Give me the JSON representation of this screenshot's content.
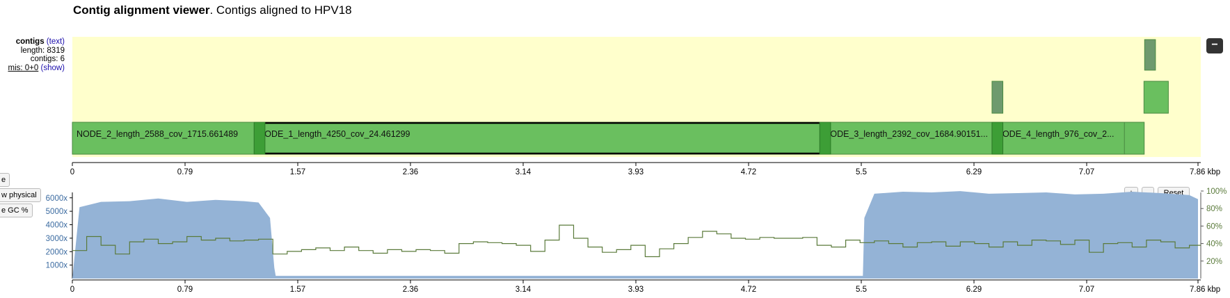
{
  "header": {
    "title_bold": "Contig alignment viewer",
    "title_rest": ". Contigs aligned to HPV18"
  },
  "info": {
    "contigs_label": "contigs",
    "text_link": "(text)",
    "length": "length: 8319",
    "contigs": "contigs: 6",
    "mis": "mis: 0+0",
    "show_link": "(show)"
  },
  "collapse_label": "−",
  "alignment": {
    "contigs": [
      {
        "name": "NODE_2_length_2588_cov_1715.661489",
        "start": 0,
        "end": 2588,
        "lane": 0,
        "color": "#6abf5f"
      },
      {
        "name": "NODE_1_length_4250_cov_24.461299",
        "start": 1340,
        "end": 5590,
        "lane": 0,
        "color": "#6abf5f",
        "selected": true
      },
      {
        "name": "NODE_3_length_2392_cov_1684.90151...",
        "start": 5510,
        "end": 7902,
        "lane": 0,
        "color": "#6abf5f"
      },
      {
        "name": "NODE_4_length_976_cov_2...",
        "start": 6780,
        "end": 7756,
        "lane": 0,
        "color": "#6abf5f"
      },
      {
        "name": "",
        "start": 6780,
        "end": 6860,
        "lane": 1,
        "color": "#6e9a6e"
      },
      {
        "name": "",
        "start": 7900,
        "end": 8080,
        "lane": 1,
        "color": "#6abf5f"
      },
      {
        "name": "",
        "start": 7905,
        "end": 7985,
        "lane": 2,
        "color": "#6e9a6e"
      }
    ],
    "overlaps": [
      {
        "start": 1340,
        "end": 1420
      },
      {
        "start": 5510,
        "end": 5590
      },
      {
        "start": 6780,
        "end": 6860
      }
    ]
  },
  "axis": {
    "ticks": [
      "0",
      "0.79",
      "1.57",
      "2.36",
      "3.14",
      "3.93",
      "4.72",
      "5.5",
      "6.29",
      "7.07",
      "7.86 kbp"
    ]
  },
  "coverage_controls": {
    "plus": "+",
    "minus": "-",
    "reset": "Reset",
    "side_buttons": [
      "e",
      "w physical",
      "e GC %"
    ]
  },
  "chart_data": {
    "type": "area",
    "title": "",
    "y_left_ticks": [
      "6000x",
      "5000x",
      "4000x",
      "3000x",
      "2000x",
      "1000x"
    ],
    "y_left_range": [
      0,
      6400
    ],
    "y_right_ticks": [
      "100%",
      "80%",
      "60%",
      "40%",
      "20%"
    ],
    "y_right_range": [
      0,
      100
    ],
    "x_range_kbp": [
      0,
      7.86
    ],
    "series": [
      {
        "kind": "coverage",
        "color": "#94b3d6",
        "x": [
          0,
          0.05,
          0.2,
          0.4,
          0.6,
          0.8,
          1.0,
          1.2,
          1.3,
          1.38,
          1.41,
          1.42,
          5.52,
          5.53,
          5.6,
          5.8,
          6.0,
          6.2,
          6.4,
          6.6,
          6.8,
          7.0,
          7.2,
          7.4,
          7.6,
          7.8,
          7.86
        ],
        "y": [
          0,
          5300,
          5700,
          5750,
          5950,
          5700,
          5850,
          5750,
          5650,
          4500,
          800,
          200,
          200,
          4500,
          6300,
          6450,
          6400,
          6500,
          6300,
          6350,
          6400,
          6250,
          6300,
          6450,
          6350,
          6200,
          5900
        ]
      },
      {
        "kind": "gc",
        "color": "#5a7a3a",
        "x": [
          0,
          0.1,
          0.2,
          0.3,
          0.4,
          0.5,
          0.6,
          0.7,
          0.8,
          0.9,
          1.0,
          1.1,
          1.2,
          1.3,
          1.4,
          1.5,
          1.6,
          1.7,
          1.8,
          1.9,
          2.0,
          2.1,
          2.2,
          2.3,
          2.4,
          2.5,
          2.6,
          2.7,
          2.8,
          2.9,
          3.0,
          3.1,
          3.2,
          3.3,
          3.4,
          3.5,
          3.6,
          3.7,
          3.8,
          3.9,
          4.0,
          4.1,
          4.2,
          4.3,
          4.4,
          4.5,
          4.6,
          4.7,
          4.8,
          4.9,
          5.0,
          5.1,
          5.2,
          5.3,
          5.4,
          5.5,
          5.6,
          5.7,
          5.8,
          5.9,
          6.0,
          6.1,
          6.2,
          6.3,
          6.4,
          6.5,
          6.6,
          6.7,
          6.8,
          6.9,
          7.0,
          7.1,
          7.2,
          7.3,
          7.4,
          7.5,
          7.6,
          7.7,
          7.8
        ],
        "y": [
          32,
          48,
          38,
          28,
          42,
          45,
          40,
          42,
          48,
          44,
          46,
          43,
          44,
          45,
          28,
          31,
          33,
          35,
          32,
          36,
          32,
          29,
          33,
          31,
          33,
          32,
          29,
          40,
          42,
          41,
          40,
          38,
          31,
          44,
          61,
          46,
          36,
          30,
          33,
          38,
          25,
          34,
          40,
          47,
          54,
          51,
          46,
          45,
          47,
          46,
          46,
          47,
          38,
          36,
          44,
          41,
          43,
          40,
          36,
          41,
          42,
          37,
          42,
          40,
          36,
          42,
          38,
          44,
          43,
          39,
          44,
          30,
          40,
          41,
          36,
          44,
          42,
          35,
          38
        ]
      }
    ]
  }
}
